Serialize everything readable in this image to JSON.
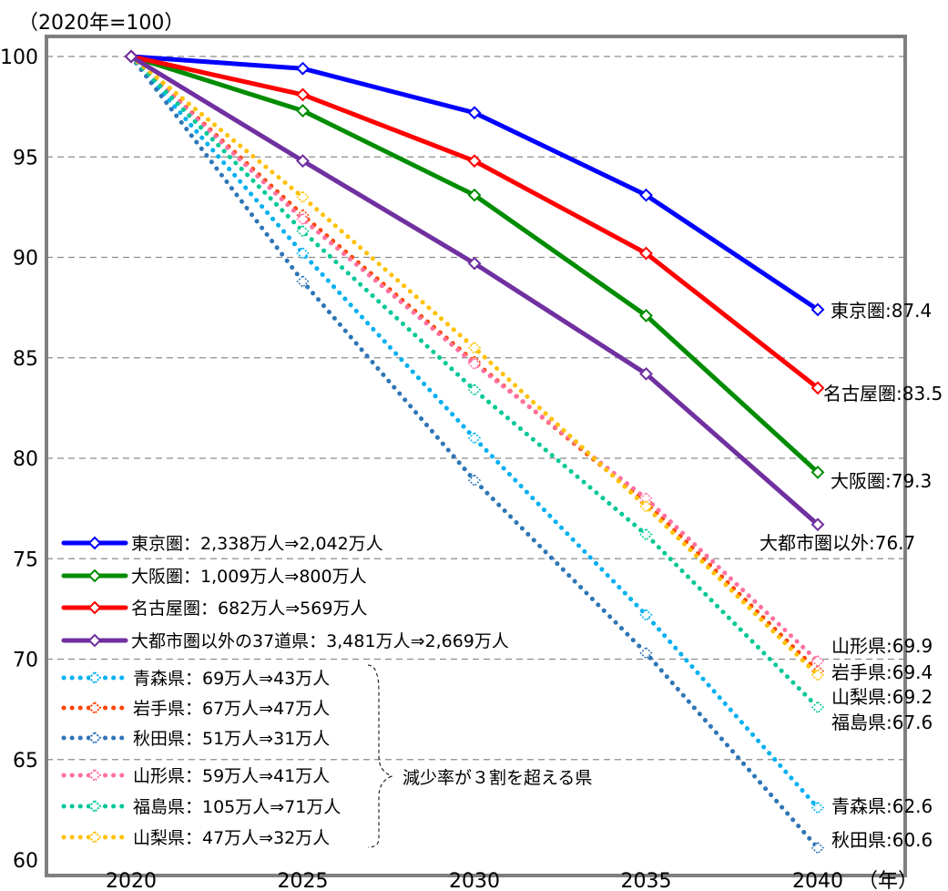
{
  "chart_data": {
    "type": "line",
    "unit_note": "（2020年=100）",
    "x_unit": "（年）",
    "x": [
      2020,
      2025,
      2030,
      2035,
      2040
    ],
    "xlim": [
      2020,
      2040
    ],
    "ylim": [
      60,
      100
    ],
    "yticks": [
      60,
      65,
      70,
      75,
      80,
      85,
      90,
      95,
      100
    ],
    "grid": true,
    "legend_position": "bottom-left",
    "series": [
      {
        "name": "東京圏",
        "legend": "東京圏：2,338万人⇒2,042万人",
        "color": "#0000ff",
        "style": "solid",
        "values": [
          100,
          99.4,
          97.2,
          93.1,
          87.4
        ],
        "end_label": "東京圏:87.4"
      },
      {
        "name": "大阪圏",
        "legend": "大阪圏：1,009万人⇒800万人",
        "color": "#008c00",
        "style": "solid",
        "values": [
          100,
          97.3,
          93.1,
          87.1,
          79.3
        ],
        "end_label": "大阪圏:79.3"
      },
      {
        "name": "名古屋圏",
        "legend": "名古屋圏：682万人⇒569万人",
        "color": "#ff0000",
        "style": "solid",
        "values": [
          100,
          98.1,
          94.8,
          90.2,
          83.5
        ],
        "end_label": "名古屋圏:83.5"
      },
      {
        "name": "大都市圏以外の37道県",
        "legend": "大都市圏以外の37道県：3,481万人⇒2,669万人",
        "color": "#7030a0",
        "style": "solid",
        "values": [
          100,
          94.8,
          89.7,
          84.2,
          76.7
        ],
        "end_label": "大都市圏以外:76.7"
      },
      {
        "name": "青森県",
        "legend": "青森県：69万人⇒43万人",
        "color": "#00b0f0",
        "style": "dotted",
        "values": [
          100,
          90.2,
          81.0,
          72.2,
          62.6
        ],
        "end_label": "青森県:62.6"
      },
      {
        "name": "岩手県",
        "legend": "岩手県：67万人⇒47万人",
        "color": "#ff4500",
        "style": "dotted",
        "values": [
          100,
          92.1,
          84.8,
          77.8,
          69.4
        ],
        "end_label": "岩手県:69.4"
      },
      {
        "name": "秋田県",
        "legend": "秋田県：51万人⇒31万人",
        "color": "#2e75b6",
        "style": "dotted",
        "values": [
          100,
          88.8,
          78.9,
          70.3,
          60.6
        ],
        "end_label": "秋田県:60.6"
      },
      {
        "name": "山形県",
        "legend": "山形県：59万人⇒41万人",
        "color": "#ff6fa0",
        "style": "dotted",
        "values": [
          100,
          91.9,
          84.7,
          78.0,
          69.9
        ],
        "end_label": "山形県:69.9"
      },
      {
        "name": "福島県",
        "legend": "福島県：105万人⇒71万人",
        "color": "#00c896",
        "style": "dotted",
        "values": [
          100,
          91.3,
          83.4,
          76.2,
          67.6
        ],
        "end_label": "福島県:67.6"
      },
      {
        "name": "山梨県",
        "legend": "山梨県：47万人⇒32万人",
        "color": "#ffc000",
        "style": "dotted",
        "values": [
          100,
          93.0,
          85.5,
          77.6,
          69.2
        ],
        "end_label": "山梨県:69.2"
      }
    ],
    "bracket_note": "減少率が３割を超える県"
  }
}
